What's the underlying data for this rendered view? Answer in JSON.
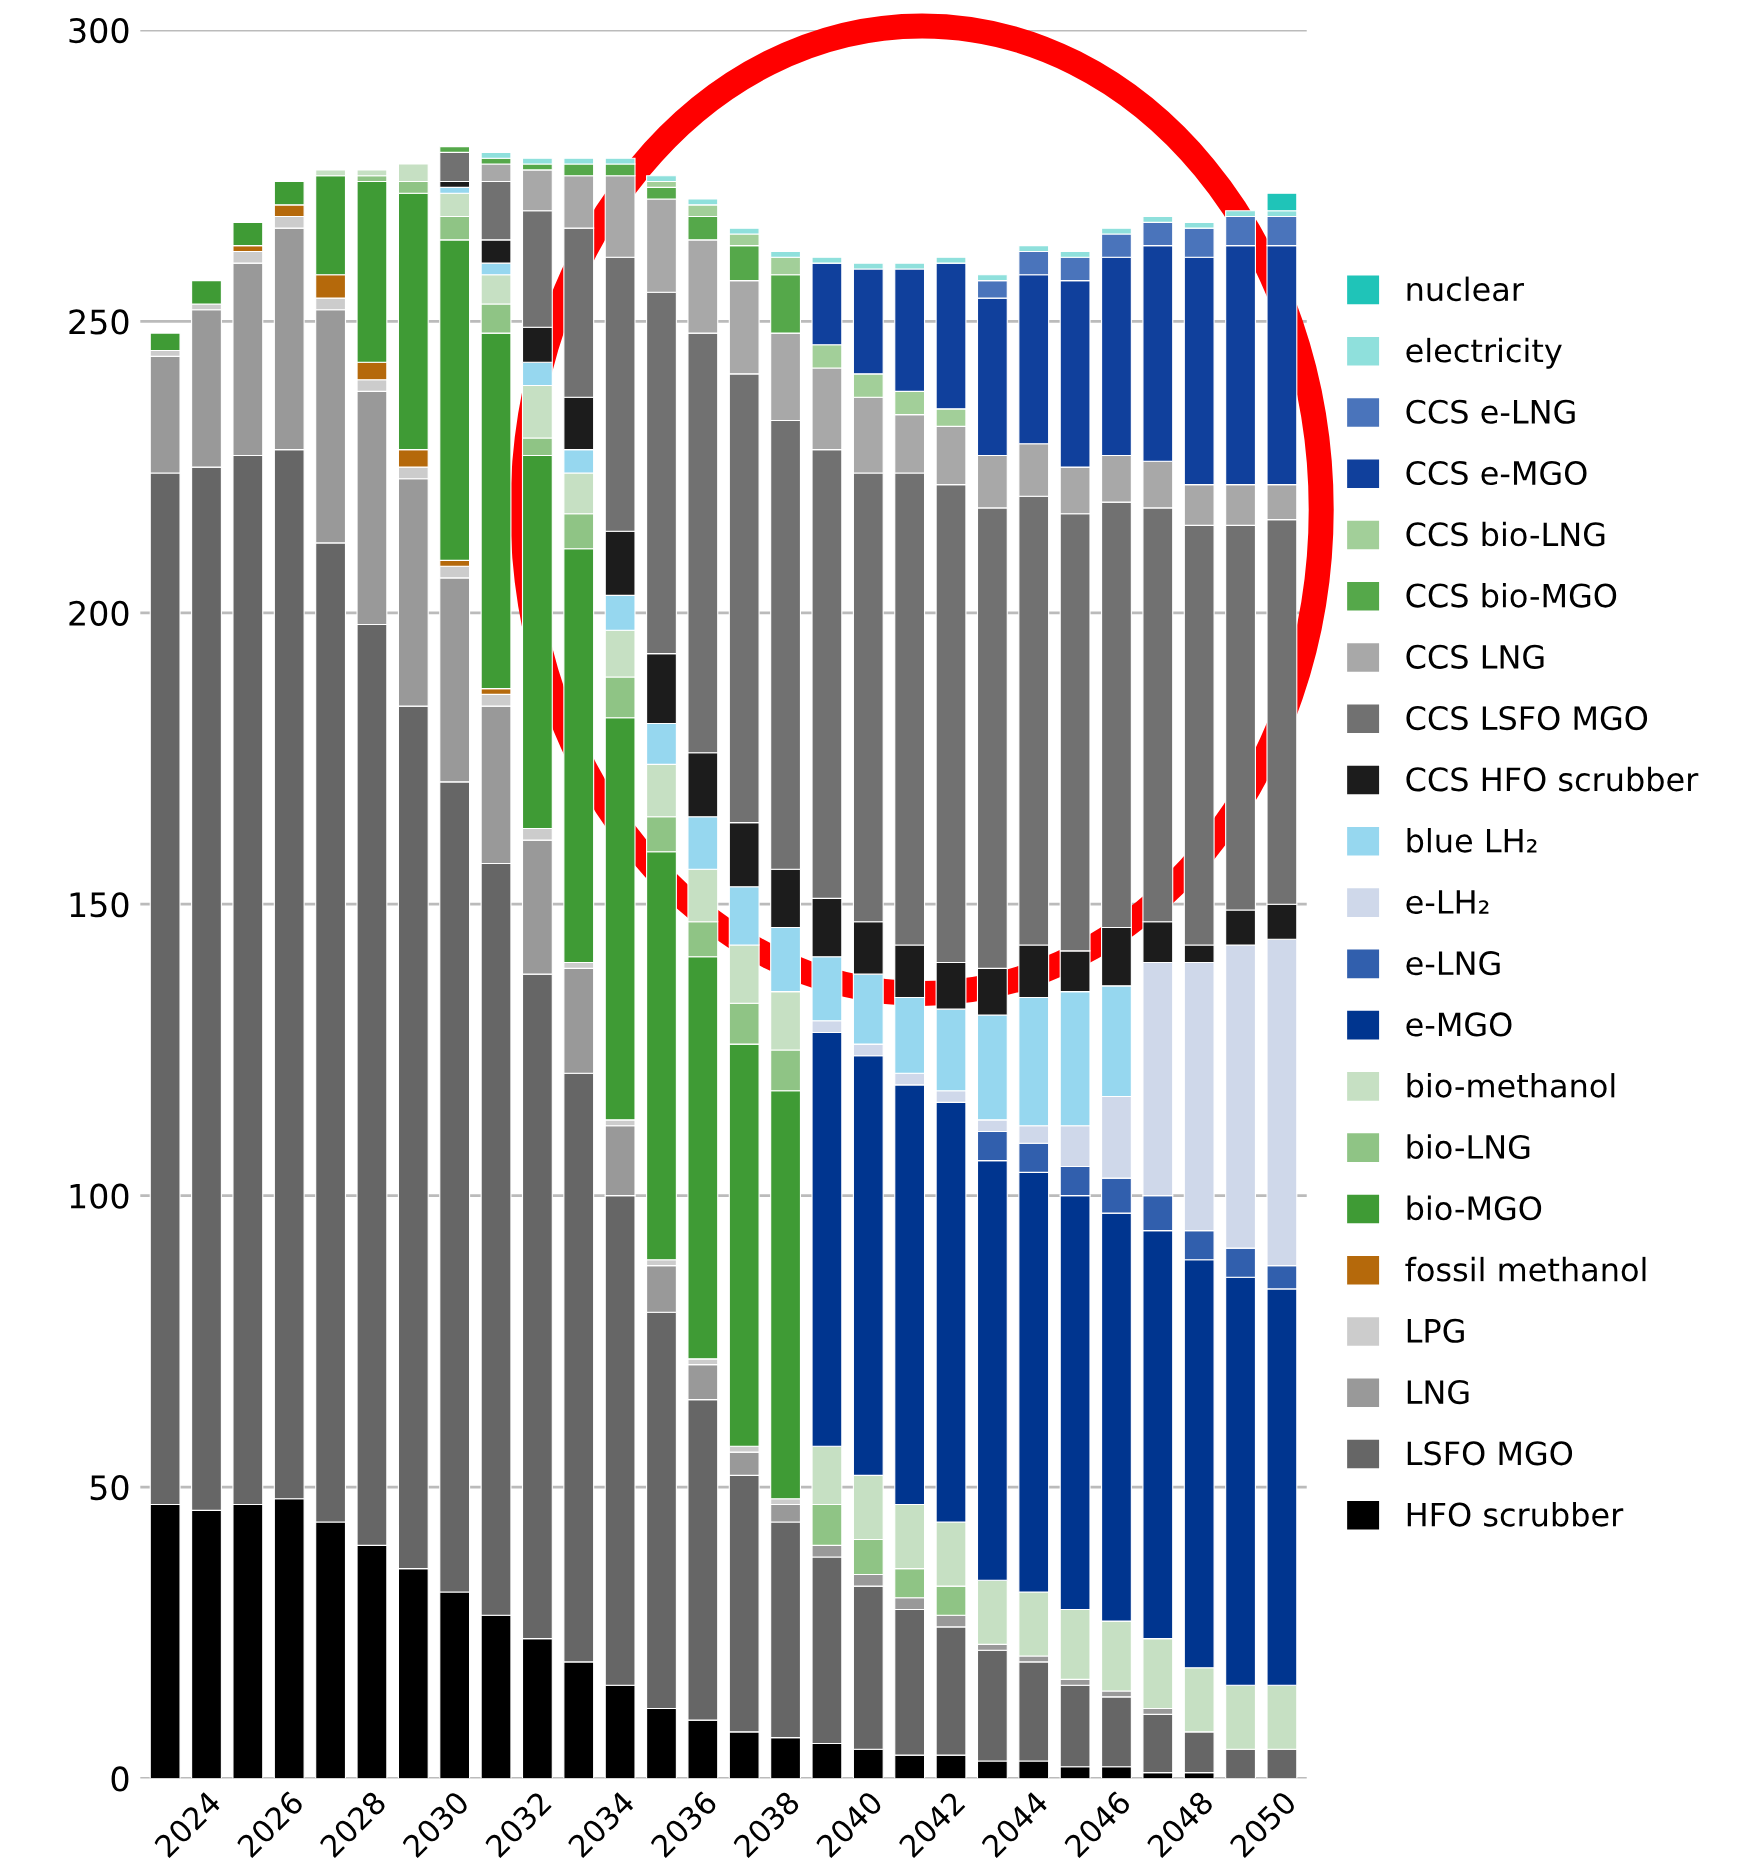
{
  "chart_data": {
    "type": "bar",
    "stacked": true,
    "categories": [
      null,
      "2024",
      null,
      "2026",
      null,
      "2028",
      null,
      "2030",
      null,
      "2032",
      null,
      "2034",
      null,
      "2036",
      null,
      "2038",
      null,
      "2040",
      null,
      "2042",
      null,
      "2044",
      null,
      "2046",
      null,
      "2048",
      null,
      "2050"
    ],
    "ylim": [
      0,
      300
    ],
    "yticks": [
      0,
      50,
      100,
      150,
      200,
      250,
      300
    ],
    "grid": "y",
    "legend": "right",
    "series": [
      {
        "name": "HFO scrubber",
        "color": "#000000",
        "values": [
          47,
          46,
          47,
          48,
          44,
          40,
          36,
          32,
          28,
          24,
          20,
          16,
          12,
          10,
          8,
          7,
          6,
          5,
          4,
          4,
          3,
          3,
          2,
          2,
          1,
          1,
          null,
          null
        ]
      },
      {
        "name": "LSFO MGO",
        "color": "#666666",
        "values": [
          177,
          179,
          180,
          180,
          168,
          158,
          148,
          139,
          129,
          114,
          101,
          84,
          68,
          55,
          44,
          37,
          32,
          28,
          25,
          22,
          19,
          17,
          14,
          12,
          10,
          7,
          5,
          5
        ]
      },
      {
        "name": "LNG",
        "color": "#999999",
        "values": [
          20,
          27,
          33,
          38,
          40,
          40,
          39,
          35,
          27,
          23,
          18,
          12,
          8,
          6,
          4,
          3,
          2,
          2,
          2,
          2,
          1,
          1,
          1,
          1,
          1,
          null,
          null,
          null
        ]
      },
      {
        "name": "LPG",
        "color": "#cccccc",
        "values": [
          1,
          1,
          2,
          2,
          2,
          2,
          2,
          2,
          2,
          2,
          1,
          1,
          1,
          1,
          1,
          1,
          null,
          null,
          null,
          null,
          null,
          null,
          null,
          null,
          null,
          null,
          null,
          null
        ]
      },
      {
        "name": "fossil methanol",
        "color": "#b5690b",
        "values": [
          null,
          null,
          1,
          2,
          4,
          3,
          3,
          1,
          1,
          null,
          null,
          null,
          null,
          null,
          null,
          null,
          null,
          null,
          null,
          null,
          null,
          null,
          null,
          null,
          null,
          null,
          null,
          null
        ]
      },
      {
        "name": "bio-MGO",
        "color": "#3f9b35",
        "values": [
          3,
          4,
          4,
          4,
          17,
          31,
          44,
          55,
          61,
          64,
          71,
          69,
          70,
          69,
          69,
          70,
          null,
          null,
          null,
          null,
          null,
          null,
          null,
          null,
          null,
          null,
          null,
          null
        ]
      },
      {
        "name": "bio-LNG",
        "color": "#8fc485",
        "values": [
          null,
          null,
          null,
          null,
          null,
          1,
          2,
          4,
          5,
          3,
          6,
          7,
          6,
          6,
          7,
          7,
          7,
          6,
          5,
          5,
          null,
          null,
          null,
          null,
          null,
          null,
          null,
          null
        ]
      },
      {
        "name": "bio-methanol",
        "color": "#c6e0c3",
        "values": [
          null,
          null,
          null,
          null,
          1,
          1,
          3,
          4,
          5,
          9,
          7,
          8,
          9,
          9,
          10,
          10,
          10,
          11,
          11,
          11,
          11,
          11,
          12,
          12,
          12,
          11,
          11,
          11
        ]
      },
      {
        "name": "e-MGO",
        "color": "#00358f",
        "values": [
          null,
          null,
          null,
          null,
          null,
          null,
          null,
          null,
          null,
          null,
          null,
          null,
          null,
          null,
          null,
          null,
          71,
          72,
          72,
          72,
          72,
          72,
          71,
          70,
          70,
          70,
          70,
          68
        ]
      },
      {
        "name": "e-LNG",
        "color": "#315fad",
        "values": [
          null,
          null,
          null,
          null,
          null,
          null,
          null,
          null,
          null,
          null,
          null,
          null,
          null,
          null,
          null,
          null,
          null,
          null,
          null,
          null,
          5,
          5,
          5,
          6,
          6,
          5,
          5,
          4
        ]
      },
      {
        "name": "e-LH₂",
        "color": "#cfd8ea",
        "values": [
          null,
          null,
          null,
          null,
          null,
          null,
          null,
          null,
          null,
          null,
          null,
          null,
          null,
          null,
          null,
          null,
          2,
          2,
          2,
          2,
          2,
          3,
          7,
          14,
          40,
          46,
          52,
          56
        ]
      },
      {
        "name": "blue LH₂",
        "color": "#96d7ef",
        "values": [
          null,
          null,
          null,
          null,
          null,
          null,
          null,
          1,
          2,
          4,
          4,
          6,
          7,
          9,
          10,
          11,
          11,
          12,
          13,
          14,
          18,
          22,
          23,
          19,
          null,
          null,
          null,
          null
        ]
      },
      {
        "name": "CCS HFO scrubber",
        "color": "#1c1c1c",
        "values": [
          null,
          null,
          null,
          null,
          null,
          null,
          null,
          1,
          4,
          6,
          9,
          11,
          12,
          11,
          11,
          10,
          10,
          9,
          9,
          8,
          8,
          9,
          7,
          10,
          7,
          3,
          6,
          6
        ]
      },
      {
        "name": "CCS LSFO MGO",
        "color": "#717171",
        "values": [
          null,
          null,
          null,
          null,
          null,
          null,
          null,
          5,
          10,
          20,
          29,
          47,
          62,
          72,
          77,
          77,
          77,
          77,
          81,
          82,
          79,
          77,
          75,
          73,
          71,
          72,
          66,
          66
        ]
      },
      {
        "name": "CCS LNG",
        "color": "#a8a8a8",
        "values": [
          null,
          null,
          null,
          null,
          null,
          null,
          null,
          null,
          3,
          7,
          9,
          14,
          16,
          16,
          16,
          15,
          14,
          13,
          10,
          10,
          9,
          9,
          8,
          8,
          8,
          7,
          7,
          6
        ]
      },
      {
        "name": "CCS bio-MGO",
        "color": "#55a84a",
        "values": [
          null,
          null,
          null,
          null,
          null,
          null,
          null,
          1,
          1,
          1,
          2,
          2,
          2,
          4,
          6,
          10,
          null,
          null,
          null,
          null,
          null,
          null,
          null,
          null,
          null,
          null,
          null,
          null
        ]
      },
      {
        "name": "CCS bio-LNG",
        "color": "#a2cf99",
        "values": [
          null,
          null,
          null,
          null,
          null,
          null,
          null,
          null,
          null,
          null,
          null,
          null,
          1,
          2,
          2,
          3,
          4,
          4,
          4,
          3,
          null,
          null,
          null,
          null,
          null,
          null,
          null,
          null
        ]
      },
      {
        "name": "CCS e-MGO",
        "color": "#10409c",
        "values": [
          null,
          null,
          null,
          null,
          null,
          null,
          null,
          null,
          null,
          null,
          null,
          null,
          null,
          null,
          null,
          null,
          14,
          18,
          21,
          25,
          27,
          29,
          32,
          34,
          37,
          39,
          41,
          41
        ]
      },
      {
        "name": "CCS e-LNG",
        "color": "#4a74bb",
        "values": [
          null,
          null,
          null,
          null,
          null,
          null,
          null,
          null,
          null,
          null,
          null,
          null,
          null,
          null,
          null,
          null,
          null,
          null,
          null,
          null,
          3,
          4,
          4,
          4,
          4,
          5,
          5,
          5
        ]
      },
      {
        "name": "electricity",
        "color": "#8fe0dc",
        "values": [
          null,
          null,
          null,
          null,
          null,
          null,
          null,
          null,
          1,
          1,
          1,
          1,
          1,
          1,
          1,
          1,
          1,
          1,
          1,
          1,
          1,
          1,
          1,
          1,
          1,
          1,
          1,
          1
        ]
      },
      {
        "name": "nuclear",
        "color": "#1fc4b8",
        "values": [
          null,
          null,
          null,
          null,
          null,
          null,
          null,
          null,
          null,
          null,
          null,
          null,
          null,
          null,
          null,
          null,
          null,
          null,
          null,
          null,
          null,
          null,
          null,
          null,
          null,
          null,
          null,
          3
        ]
      }
    ]
  }
}
